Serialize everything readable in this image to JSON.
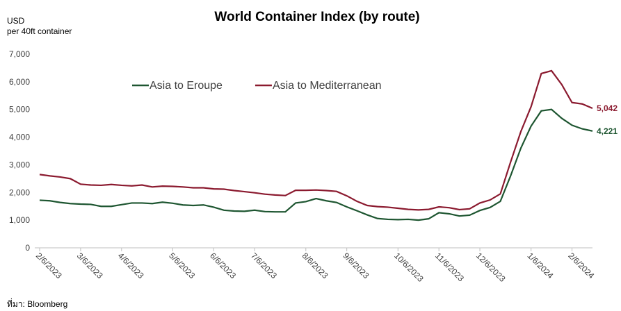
{
  "chart_data": {
    "type": "line",
    "title": "World Container Index (by route)",
    "y_label": "USD",
    "y_sublabel": "per 40ft container",
    "source": "ที่มา: Bloomberg",
    "categories": [
      "2/6/2023",
      null,
      null,
      null,
      "3/6/2023",
      null,
      null,
      null,
      "4/6/2023",
      null,
      null,
      null,
      null,
      "5/6/2023",
      null,
      null,
      null,
      "6/6/2023",
      null,
      null,
      null,
      "7/6/2023",
      null,
      null,
      null,
      null,
      "8/6/2023",
      null,
      null,
      null,
      "9/6/2023",
      null,
      null,
      null,
      null,
      "10/6/2023",
      null,
      null,
      null,
      "11/6/2023",
      null,
      null,
      null,
      "12/6/2023",
      null,
      null,
      null,
      null,
      "1/6/2024",
      null,
      null,
      null,
      "2/6/2024",
      null,
      null
    ],
    "series": [
      {
        "name": "Asia to Eroupe",
        "color": "#1e5631",
        "values": [
          1720,
          1700,
          1640,
          1600,
          1580,
          1570,
          1500,
          1500,
          1560,
          1620,
          1620,
          1600,
          1650,
          1610,
          1550,
          1530,
          1550,
          1470,
          1360,
          1330,
          1320,
          1360,
          1310,
          1300,
          1300,
          1620,
          1670,
          1780,
          1700,
          1640,
          1480,
          1340,
          1190,
          1060,
          1030,
          1020,
          1030,
          1000,
          1050,
          1270,
          1230,
          1150,
          1180,
          1350,
          1460,
          1680,
          2600,
          3600,
          4400,
          4950,
          5000,
          4680,
          4430,
          4300,
          4221
        ],
        "value_labels": [
          null,
          null,
          null,
          null,
          null,
          null,
          null,
          null,
          null,
          null,
          null,
          null,
          null,
          null,
          null,
          null,
          null,
          null,
          null,
          null,
          null,
          null,
          null,
          null,
          null,
          null,
          null,
          null,
          null,
          null,
          null,
          null,
          null,
          null,
          null,
          null,
          null,
          null,
          null,
          null,
          null,
          null,
          null,
          null,
          null,
          null,
          null,
          null,
          null,
          null,
          null,
          null,
          null,
          null,
          "4,221"
        ]
      },
      {
        "name": "Asia to Mediterranean",
        "color": "#8b1a2f",
        "values": [
          2650,
          2600,
          2560,
          2500,
          2300,
          2270,
          2260,
          2290,
          2260,
          2240,
          2270,
          2200,
          2230,
          2220,
          2200,
          2170,
          2170,
          2130,
          2120,
          2070,
          2030,
          1990,
          1940,
          1910,
          1890,
          2080,
          2080,
          2090,
          2070,
          2040,
          1880,
          1680,
          1530,
          1490,
          1470,
          1430,
          1390,
          1370,
          1390,
          1480,
          1450,
          1380,
          1410,
          1620,
          1730,
          1950,
          3100,
          4200,
          5100,
          6300,
          6400,
          5900,
          5250,
          5200,
          5042
        ],
        "value_labels": [
          null,
          null,
          null,
          null,
          null,
          null,
          null,
          null,
          null,
          null,
          null,
          null,
          null,
          null,
          null,
          null,
          null,
          null,
          null,
          null,
          null,
          null,
          null,
          null,
          null,
          null,
          null,
          null,
          null,
          null,
          null,
          null,
          null,
          null,
          null,
          null,
          null,
          null,
          null,
          null,
          null,
          null,
          null,
          null,
          null,
          null,
          null,
          null,
          null,
          null,
          null,
          null,
          null,
          null,
          "5,042"
        ]
      }
    ],
    "ylim": [
      0,
      7000
    ],
    "yticks": [
      0,
      {
        "value": 1000,
        "label": "1,000"
      },
      {
        "value": 2000,
        "label": "2,000"
      },
      {
        "value": 3000,
        "label": "3,000"
      },
      {
        "value": 4000,
        "label": "4,000"
      },
      {
        "value": 5000,
        "label": "5,000"
      },
      {
        "value": 6000,
        "label": "6,000"
      },
      {
        "value": 7000,
        "label": "7,000"
      }
    ],
    "grid": false,
    "legend": "top"
  }
}
